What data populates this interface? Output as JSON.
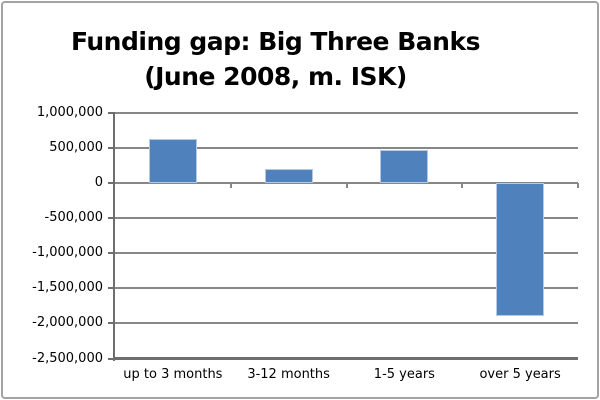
{
  "chart_data": {
    "type": "bar",
    "title": "Funding gap: Big Three Banks (June 2008, m. ISK)",
    "title_lines": [
      "Funding gap: Big Three Banks",
      "(June 2008, m. ISK)"
    ],
    "categories": [
      "up to 3 months",
      "3-12 months",
      "1-5 years",
      "over 5 years"
    ],
    "values": [
      630000,
      200000,
      470000,
      -1900000
    ],
    "xlabel": "",
    "ylabel": "",
    "ylim": [
      -2500000,
      1000000
    ],
    "ytick_step": 500000,
    "ytick_values": [
      1000000,
      500000,
      0,
      -500000,
      -1000000,
      -1500000,
      -2000000,
      -2500000
    ],
    "ytick_labels": [
      "1,000,000",
      "500,000",
      "0",
      "-500,000",
      "-1,000,000",
      "-1,500,000",
      "-2,000,000",
      "-2,500,000"
    ],
    "grid": true,
    "legend": "none",
    "colors": {
      "bar_fill": "#4f81bd",
      "bar_border": "#b7c9e2",
      "gridline": "#878787",
      "axis": "#6e6e6e",
      "text": "#000000",
      "frame_border": "#a3a3a3",
      "background": "#ffffff"
    }
  }
}
